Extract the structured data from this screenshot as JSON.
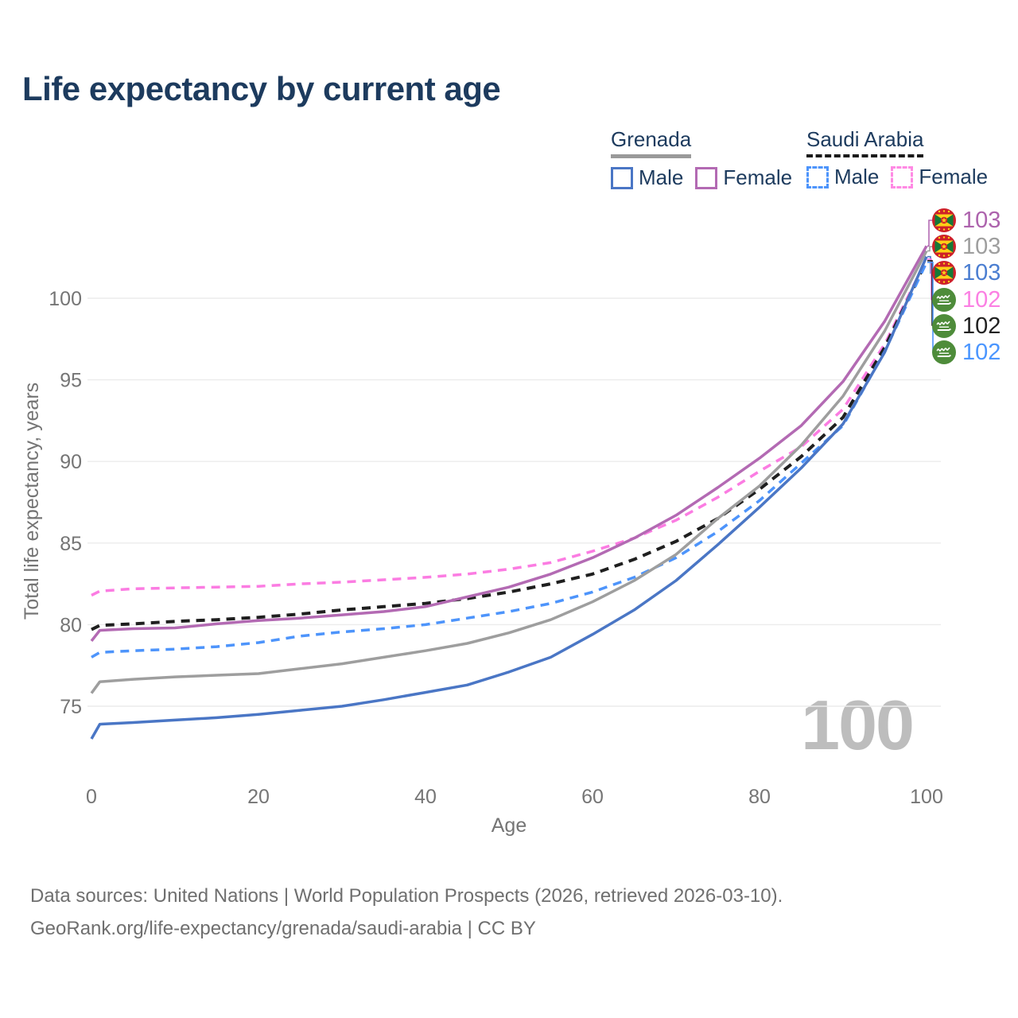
{
  "title": "Life expectancy by current age",
  "watermark": "100",
  "legend": {
    "groups": [
      {
        "label": "Grenada",
        "underline": "solid",
        "underline_color": "#9a9a9a",
        "items": [
          {
            "label": "Male",
            "color": "#4a76c5",
            "dash": "solid"
          },
          {
            "label": "Female",
            "color": "#b36ab3",
            "dash": "solid"
          }
        ]
      },
      {
        "label": "Saudi Arabia",
        "underline": "dashed",
        "underline_color": "#1a1a1a",
        "items": [
          {
            "label": "Male",
            "color": "#4d94fb",
            "dash": "dashed"
          },
          {
            "label": "Female",
            "color": "#ff8ae4",
            "dash": "dashed"
          }
        ]
      }
    ]
  },
  "chart_data": {
    "type": "line",
    "title": "Life expectancy by current age",
    "xlabel": "Age",
    "ylabel": "Total life expectancy, years",
    "xticks": [
      0,
      20,
      40,
      60,
      80,
      100
    ],
    "yticks": [
      75,
      80,
      85,
      90,
      95,
      100
    ],
    "xlim": [
      0,
      100
    ],
    "ylim": [
      72,
      104
    ],
    "grid": "horizontal",
    "legend_position": "top-right",
    "x": [
      0,
      1,
      5,
      10,
      15,
      20,
      25,
      30,
      35,
      40,
      45,
      50,
      55,
      60,
      65,
      70,
      75,
      80,
      85,
      90,
      95,
      100
    ],
    "series": [
      {
        "key": "saudi_female",
        "name": "Saudi Arabia Female",
        "color": "#fb7ce2",
        "dash": "dashed",
        "width": 3.5,
        "end_label": 102,
        "values": [
          81.8,
          82.05,
          82.2,
          82.25,
          82.3,
          82.35,
          82.5,
          82.6,
          82.75,
          82.9,
          83.1,
          83.4,
          83.8,
          84.5,
          85.3,
          86.4,
          87.8,
          89.4,
          90.9,
          93.2,
          97.2,
          102.4
        ]
      },
      {
        "key": "saudi_total",
        "name": "Saudi Arabia Both sexes",
        "color": "#1f1f1f",
        "dash": "dashed",
        "width": 4,
        "end_label": 102,
        "values": [
          79.7,
          79.95,
          80.05,
          80.2,
          80.3,
          80.45,
          80.65,
          80.9,
          81.1,
          81.3,
          81.6,
          82.0,
          82.5,
          83.1,
          84.0,
          85.1,
          86.5,
          88.3,
          90.3,
          92.7,
          97.0,
          102.3
        ]
      },
      {
        "key": "saudi_male",
        "name": "Saudi Arabia Male",
        "color": "#4d94fb",
        "dash": "dashed",
        "width": 3.5,
        "end_label": 102,
        "values": [
          78.0,
          78.3,
          78.4,
          78.5,
          78.65,
          78.9,
          79.3,
          79.55,
          79.75,
          80.0,
          80.4,
          80.8,
          81.3,
          82.0,
          82.9,
          84.1,
          85.7,
          87.6,
          89.9,
          92.2,
          96.75,
          102.2
        ]
      },
      {
        "key": "grenada_total",
        "name": "Grenada Both sexes",
        "color": "#9e9e9e",
        "dash": "solid",
        "width": 3.5,
        "end_label": 103,
        "values": [
          75.8,
          76.5,
          76.65,
          76.8,
          76.9,
          77.0,
          77.3,
          77.6,
          78.0,
          78.4,
          78.85,
          79.5,
          80.3,
          81.4,
          82.7,
          84.3,
          86.5,
          88.5,
          91.0,
          94.0,
          98.0,
          102.9
        ]
      },
      {
        "key": "grenada_female",
        "name": "Grenada Female",
        "color": "#b36ab3",
        "dash": "solid",
        "width": 3.5,
        "end_label": 103,
        "values": [
          79.0,
          79.65,
          79.75,
          79.8,
          80.05,
          80.25,
          80.4,
          80.6,
          80.8,
          81.1,
          81.7,
          82.3,
          83.1,
          84.1,
          85.3,
          86.7,
          88.4,
          90.2,
          92.2,
          94.9,
          98.6,
          103.2
        ]
      },
      {
        "key": "grenada_male",
        "name": "Grenada Male",
        "color": "#4a76c5",
        "dash": "solid",
        "width": 3.5,
        "end_label": 103,
        "values": [
          73.0,
          73.9,
          74.0,
          74.15,
          74.3,
          74.5,
          74.75,
          75.0,
          75.4,
          75.85,
          76.3,
          77.1,
          78.0,
          79.4,
          80.9,
          82.7,
          84.9,
          87.2,
          89.6,
          92.3,
          96.7,
          102.55
        ]
      }
    ]
  },
  "end_labels": [
    {
      "series": "grenada_female",
      "flag": "grenada",
      "value": "103",
      "color": "#ad63ad"
    },
    {
      "series": "grenada_total",
      "flag": "grenada",
      "value": "103",
      "color": "#9e9e9e"
    },
    {
      "series": "grenada_male",
      "flag": "grenada",
      "value": "103",
      "color": "#4b7ed1"
    },
    {
      "series": "saudi_female",
      "flag": "saudi",
      "value": "102",
      "color": "#fb80e3"
    },
    {
      "series": "saudi_total",
      "flag": "saudi",
      "value": "102",
      "color": "#212121"
    },
    {
      "series": "saudi_male",
      "flag": "saudi",
      "value": "102",
      "color": "#4b96ff"
    }
  ],
  "footer": {
    "line1": "Data sources: United Nations | World Population Prospects (2026, retrieved 2026-03-10).",
    "line2": "GeoRank.org/life-expectancy/grenada/saudi-arabia | CC BY"
  }
}
